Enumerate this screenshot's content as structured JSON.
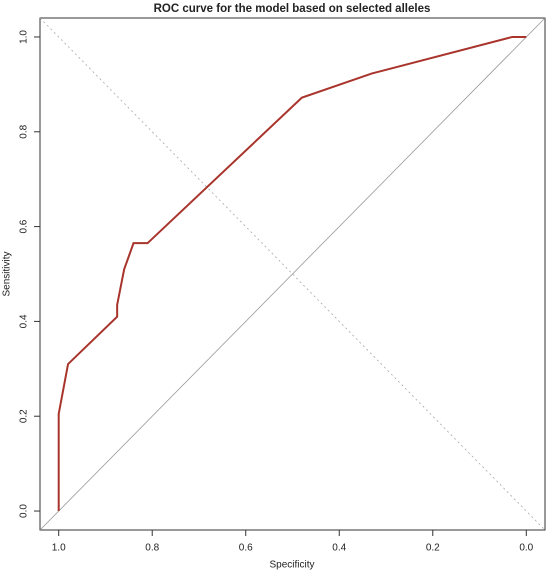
{
  "chart_data": {
    "type": "line",
    "title": "ROC curve for the model based on selected alleles",
    "x_label": "Specificity",
    "y_label": "Sensitivity",
    "x": [
      1.0,
      1.0,
      0.98,
      0.875,
      0.875,
      0.86,
      0.84,
      0.81,
      0.48,
      0.33,
      0.03,
      0.0
    ],
    "values": [
      0.0,
      0.205,
      0.31,
      0.41,
      0.435,
      0.51,
      0.565,
      0.565,
      0.872,
      0.923,
      1.0,
      1.0
    ],
    "color": "#a8342c",
    "xlim": [
      1.04,
      -0.04
    ],
    "ylim": [
      -0.04,
      1.04
    ],
    "xticks": [
      {
        "value": 1,
        "label": "1.0"
      },
      0.8,
      0.6,
      0.4,
      0.2,
      {
        "value": 0,
        "label": "0.0"
      }
    ],
    "yticks": [
      {
        "value": 0,
        "label": "0.0"
      },
      0.2,
      0.4,
      0.6,
      0.8,
      {
        "value": 1,
        "label": "1.0"
      }
    ]
  }
}
